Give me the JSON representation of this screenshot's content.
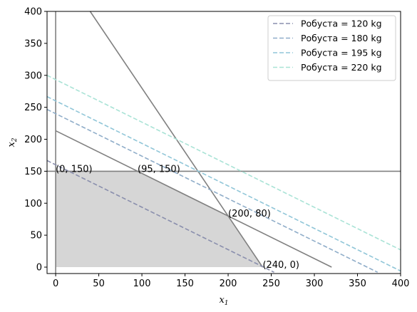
{
  "chart_data": {
    "type": "line",
    "xlabel": "x1",
    "ylabel": "x2",
    "xlim": [
      -10,
      400
    ],
    "ylim": [
      -10,
      400
    ],
    "x_ticks": [
      0,
      50,
      100,
      150,
      200,
      250,
      300,
      350,
      400
    ],
    "y_ticks": [
      0,
      50,
      100,
      150,
      200,
      250,
      300,
      350,
      400
    ],
    "grid": false,
    "legend_position": "top-right",
    "feasible_region": {
      "fill_color": "#d6d6d6",
      "vertices": [
        [
          0,
          0
        ],
        [
          0,
          150
        ],
        [
          95,
          150
        ],
        [
          200,
          80
        ],
        [
          240,
          0
        ]
      ]
    },
    "constraints": [
      {
        "points": [
          [
            0,
            -10
          ],
          [
            0,
            400
          ]
        ],
        "color": "#808080"
      },
      {
        "points": [
          [
            -10,
            150
          ],
          [
            400,
            150
          ]
        ],
        "color": "#808080"
      },
      {
        "points": [
          [
            0,
            213.3
          ],
          [
            320,
            0
          ]
        ],
        "color": "#808080"
      },
      {
        "points": [
          [
            40,
            400
          ],
          [
            240,
            0
          ]
        ],
        "color": "#808080"
      }
    ],
    "series": [
      {
        "name": "Робуста = 120 kg",
        "color": "#8a8fad",
        "points": [
          [
            -10,
            166.7
          ],
          [
            253.3,
            -8
          ]
        ]
      },
      {
        "name": "Робуста = 180 kg",
        "color": "#8fadc9",
        "points": [
          [
            -10,
            246.7
          ],
          [
            373.3,
            -8
          ]
        ]
      },
      {
        "name": "Робуста = 195 kg",
        "color": "#90c6d8",
        "points": [
          [
            -10,
            266.7
          ],
          [
            400,
            -6
          ]
        ]
      },
      {
        "name": "Робуста = 220 kg",
        "color": "#a9e3d6",
        "points": [
          [
            -10,
            300
          ],
          [
            400,
            27
          ]
        ]
      }
    ],
    "annotations": [
      {
        "text": "(0, 150)",
        "x": 0,
        "y": 150
      },
      {
        "text": "(95, 150)",
        "x": 95,
        "y": 150
      },
      {
        "text": "(200, 80)",
        "x": 200,
        "y": 80
      },
      {
        "text": "(240, 0)",
        "x": 240,
        "y": 0
      }
    ]
  }
}
